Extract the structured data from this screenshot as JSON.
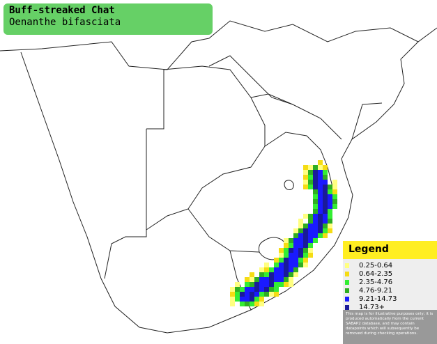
{
  "header": {
    "title": "Buff-streaked Chat",
    "subtitle": "Oenanthe bifasciata"
  },
  "legend": {
    "title": "Legend",
    "items": [
      {
        "label": "0.25-0.64",
        "color": "#ffff80"
      },
      {
        "label": "0.64-2.35",
        "color": "#f5dc14"
      },
      {
        "label": "2.35-4.76",
        "color": "#33ee33"
      },
      {
        "label": "4.76-9.21",
        "color": "#2fae22"
      },
      {
        "label": "9.21-14.73",
        "color": "#1a1aff"
      },
      {
        "label": "14.73+",
        "color": "#1a1a99"
      }
    ],
    "note": "This map is for illustrative purposes only; it is produced automatically from the current SABAP2 database, and may contain datapoints which will subsequently be removed during checking operations."
  }
}
